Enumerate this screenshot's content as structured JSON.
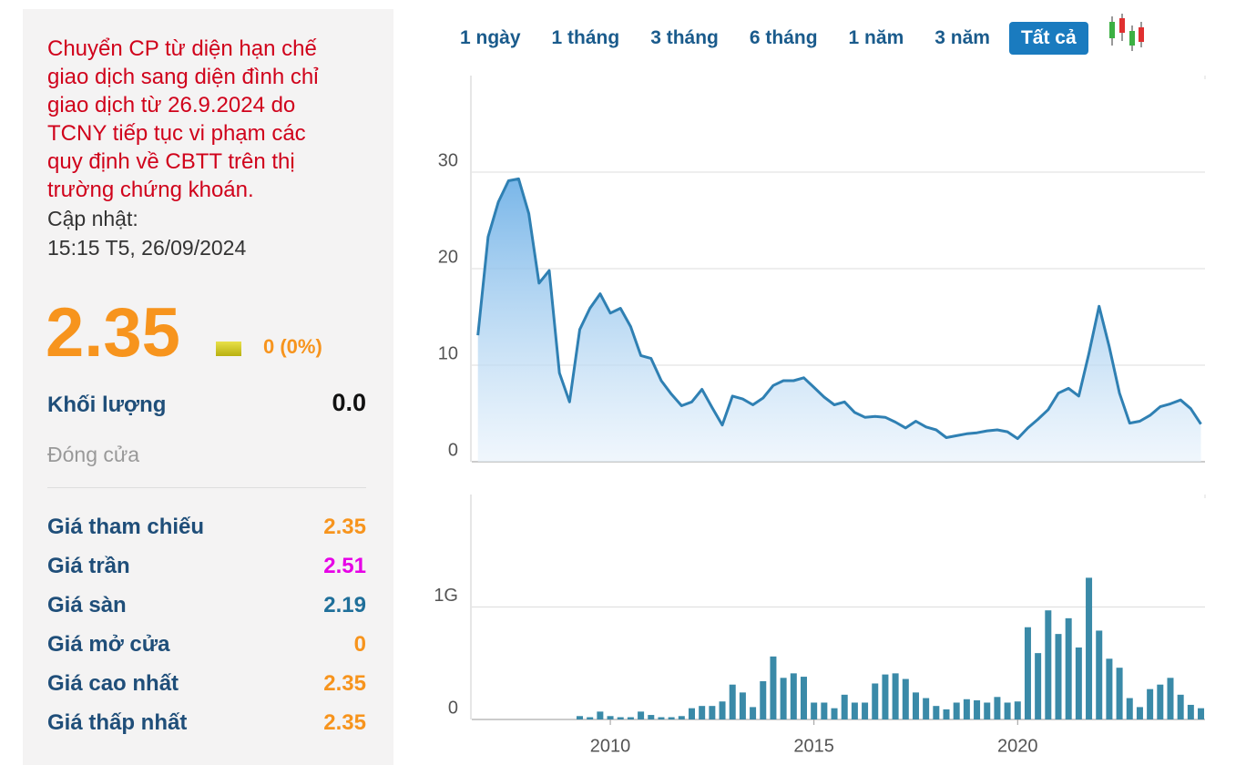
{
  "panel": {
    "notice": [
      "Chuyển CP từ diện hạn chế",
      "giao dịch sang diện đình chỉ",
      "giao dịch từ 26.9.2024 do",
      "TCNY tiếp tục vi phạm các",
      "quy định về CBTT trên thị",
      "trường chứng khoán."
    ],
    "updated_label": "Cập nhật:",
    "updated_time": "15:15 T5, 26/09/2024",
    "price": "2.35",
    "change": "0 (0%)",
    "volume_label": "Khối lượng",
    "volume": "0.0",
    "status": "Đóng cửa",
    "rows": [
      {
        "label": "Giá tham chiếu",
        "value": "2.35",
        "color": "#f7941d"
      },
      {
        "label": "Giá trần",
        "value": "2.51",
        "color": "#e600e6"
      },
      {
        "label": "Giá sàn",
        "value": "2.19",
        "color": "#1f6f9a"
      },
      {
        "label": "Giá mở cửa",
        "value": "0",
        "color": "#f7941d"
      },
      {
        "label": "Giá cao nhất",
        "value": "2.35",
        "color": "#f7941d"
      },
      {
        "label": "Giá thấp nhất",
        "value": "2.35",
        "color": "#f7941d"
      }
    ]
  },
  "range_buttons": [
    "1 ngày",
    "1 tháng",
    "3 tháng",
    "6 tháng",
    "1 năm",
    "3 năm",
    "Tất cả"
  ],
  "active_button": 6,
  "chart_data": [
    {
      "type": "area",
      "color": "#2f80b3",
      "x": [
        2006.75,
        2007,
        2007.25,
        2007.5,
        2007.75,
        2008,
        2008.25,
        2008.5,
        2008.75,
        2009,
        2009.25,
        2009.5,
        2009.75,
        2010,
        2010.25,
        2010.5,
        2010.75,
        2011,
        2011.25,
        2011.5,
        2011.75,
        2012,
        2012.25,
        2012.5,
        2012.75,
        2013,
        2013.25,
        2013.5,
        2013.75,
        2014,
        2014.25,
        2014.5,
        2014.75,
        2015,
        2015.25,
        2015.5,
        2015.75,
        2016,
        2016.25,
        2016.5,
        2016.75,
        2017,
        2017.25,
        2017.5,
        2017.75,
        2018,
        2018.25,
        2018.5,
        2018.75,
        2019,
        2019.25,
        2019.5,
        2019.75,
        2020,
        2020.25,
        2020.5,
        2020.75,
        2021,
        2021.25,
        2021.5,
        2021.75,
        2022,
        2022.25,
        2022.5,
        2022.75,
        2023,
        2023.25,
        2023.5,
        2023.75,
        2024,
        2024.25,
        2024.5
      ],
      "values": [
        13.1,
        23.3,
        26.9,
        29.1,
        29.3,
        25.7,
        18.5,
        19.8,
        9.2,
        6.2,
        13.7,
        15.9,
        17.4,
        15.4,
        15.9,
        14.0,
        11.0,
        10.7,
        8.4,
        7.0,
        5.8,
        6.2,
        7.5,
        5.6,
        3.8,
        6.8,
        6.5,
        5.9,
        6.6,
        7.9,
        8.4,
        8.4,
        8.7,
        7.7,
        6.7,
        5.9,
        6.2,
        5.1,
        4.6,
        4.7,
        4.6,
        4.1,
        3.5,
        4.2,
        3.6,
        3.3,
        2.5,
        2.7,
        2.9,
        3.0,
        3.2,
        3.3,
        3.1,
        2.4,
        3.5,
        4.4,
        5.4,
        7.1,
        7.6,
        6.8,
        11.2,
        16.1,
        11.9,
        7.1,
        4.0,
        4.2,
        4.8,
        5.7,
        6.0,
        6.4,
        5.5,
        3.9
      ],
      "xlim": [
        2006.6,
        2024.6
      ],
      "ylim": [
        0,
        40
      ],
      "yticks": [
        0,
        10,
        20,
        30
      ],
      "grid": true
    },
    {
      "type": "bar",
      "color": "#3a8aa8",
      "x": [
        2009.25,
        2009.5,
        2009.75,
        2010,
        2010.25,
        2010.5,
        2010.75,
        2011,
        2011.25,
        2011.5,
        2011.75,
        2012,
        2012.25,
        2012.5,
        2012.75,
        2013,
        2013.25,
        2013.5,
        2013.75,
        2014,
        2014.25,
        2014.5,
        2014.75,
        2015,
        2015.25,
        2015.5,
        2015.75,
        2016,
        2016.25,
        2016.5,
        2016.75,
        2017,
        2017.25,
        2017.5,
        2017.75,
        2018,
        2018.25,
        2018.5,
        2018.75,
        2019,
        2019.25,
        2019.5,
        2019.75,
        2020,
        2020.25,
        2020.5,
        2020.75,
        2021,
        2021.25,
        2021.5,
        2021.75,
        2022,
        2022.25,
        2022.5,
        2022.75,
        2023,
        2023.25,
        2023.5,
        2023.75,
        2024,
        2024.25,
        2024.5
      ],
      "values": [
        30000000,
        20000000,
        70000000,
        30000000,
        20000000,
        20000000,
        70000000,
        40000000,
        20000000,
        20000000,
        30000000,
        100000000,
        120000000,
        120000000,
        160000000,
        310000000,
        240000000,
        110000000,
        340000000,
        560000000,
        370000000,
        410000000,
        380000000,
        150000000,
        150000000,
        100000000,
        220000000,
        150000000,
        150000000,
        320000000,
        400000000,
        410000000,
        360000000,
        240000000,
        190000000,
        120000000,
        90000000,
        150000000,
        180000000,
        170000000,
        150000000,
        200000000,
        150000000,
        160000000,
        820000000,
        590000000,
        970000000,
        760000000,
        900000000,
        640000000,
        1260000000,
        790000000,
        540000000,
        460000000,
        190000000,
        110000000,
        270000000,
        310000000,
        370000000,
        220000000,
        130000000,
        100000000
      ],
      "xlim": [
        2006.6,
        2024.6
      ],
      "ylim": [
        0,
        2000000000
      ],
      "yticks": [
        0,
        {
          "value": 1000000000,
          "label": "1G"
        }
      ],
      "xticks": [
        2010,
        2015,
        2020
      ],
      "grid": true
    }
  ]
}
